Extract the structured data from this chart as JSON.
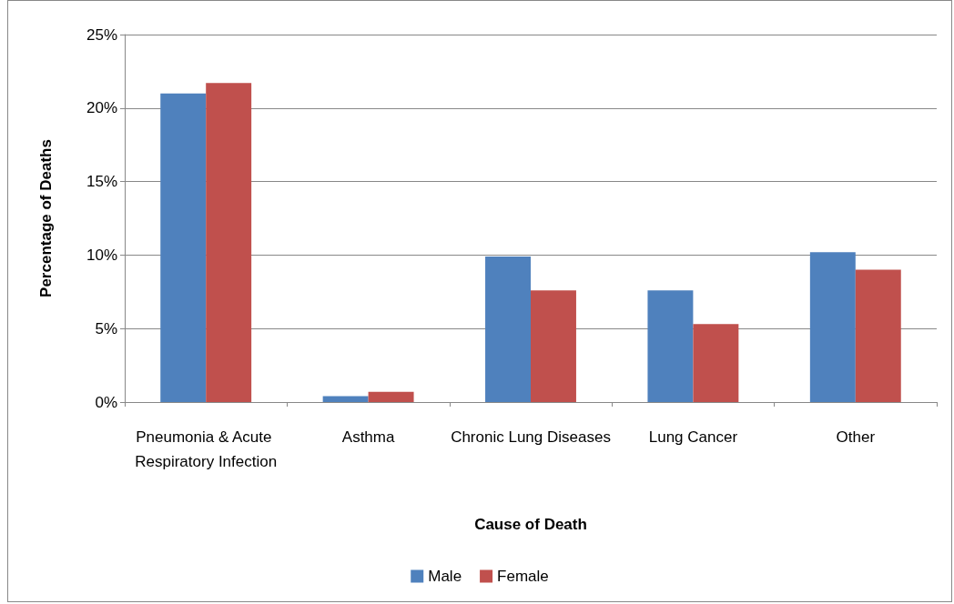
{
  "chart_data": {
    "type": "bar",
    "xlabel": "Cause of Death",
    "ylabel": "Percentage of Deaths",
    "categories": [
      "Pneumonia & Acute Respiratory Infection",
      "Asthma",
      "Chronic Lung Diseases",
      "Lung Cancer",
      "Other"
    ],
    "series": [
      {
        "name": "Male",
        "color": "#4f81bd",
        "values": [
          21.0,
          0.4,
          9.9,
          7.6,
          10.2
        ]
      },
      {
        "name": "Female",
        "color": "#c0504d",
        "values": [
          21.7,
          0.7,
          7.6,
          5.3,
          9.0
        ]
      }
    ],
    "ylim": [
      0,
      25
    ],
    "yticks": [
      {
        "value": 0,
        "label": "0%"
      },
      {
        "value": 5,
        "label": "5%"
      },
      {
        "value": 10,
        "label": "10%"
      },
      {
        "value": 15,
        "label": "15%"
      },
      {
        "value": 20,
        "label": "20%"
      },
      {
        "value": 25,
        "label": "25%"
      }
    ],
    "grid": "y",
    "legend": "bottom"
  }
}
